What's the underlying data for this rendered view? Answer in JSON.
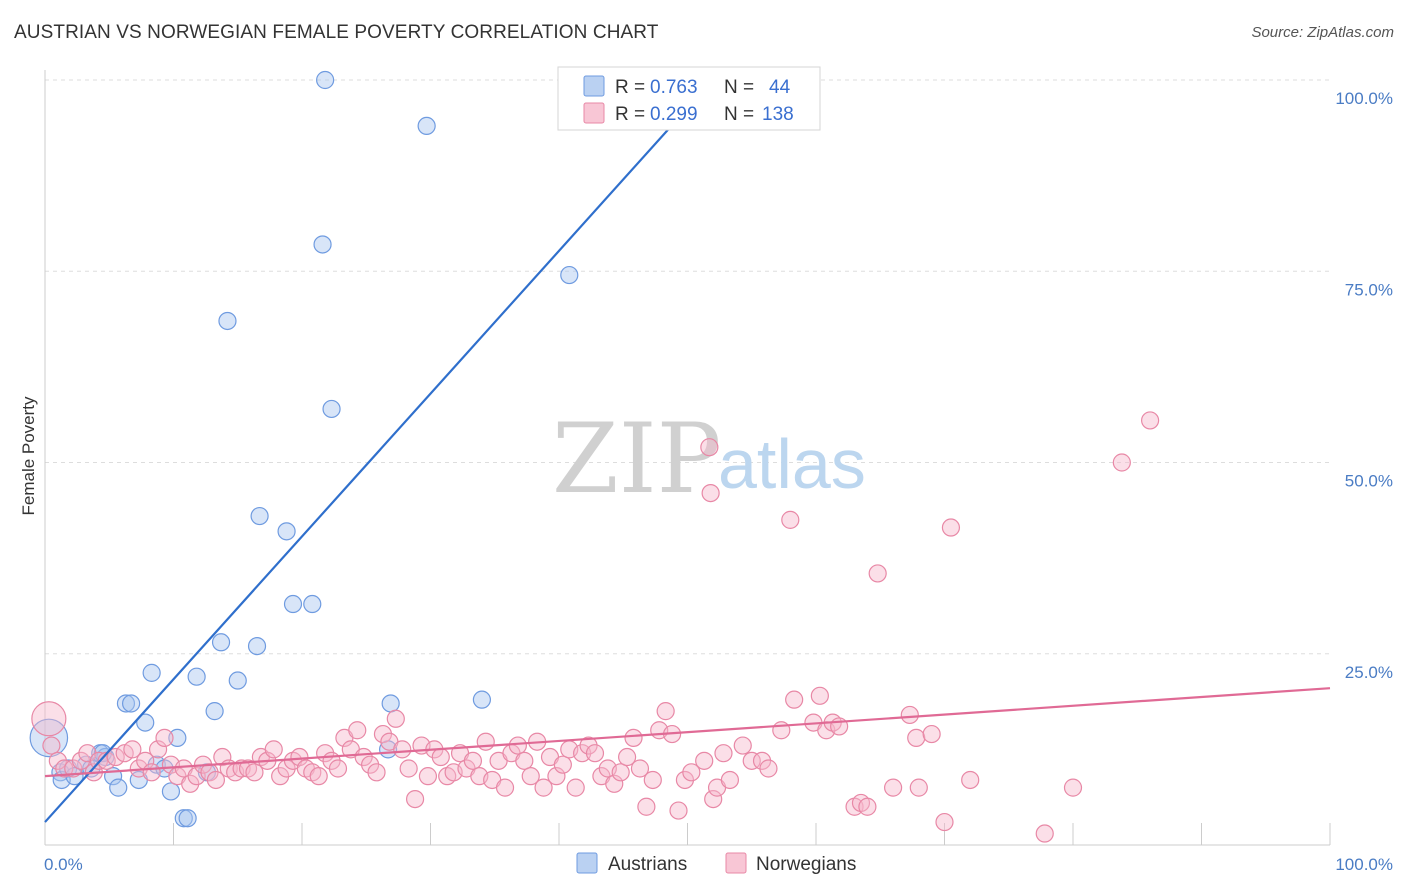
{
  "header": {
    "title": "AUSTRIAN VS NORWEGIAN FEMALE POVERTY CORRELATION CHART",
    "source": "Source: ZipAtlas.com"
  },
  "watermark": {
    "zip": "ZIP",
    "atlas": "atlas"
  },
  "legend": {
    "rows": [
      {
        "r_label": "R =",
        "r_value": "0.763",
        "n_label": "N =",
        "n_value": "44",
        "color": "#a9c6ef",
        "stroke": "#6f9be0"
      },
      {
        "r_label": "R =",
        "r_value": "0.299",
        "n_label": "N =",
        "n_value": "138",
        "color": "#f6b8cb",
        "stroke": "#e888a6"
      }
    ]
  },
  "bottom_legend": [
    {
      "label": "Austrians",
      "color": "#a9c6ef",
      "stroke": "#6f9be0"
    },
    {
      "label": "Norwegians",
      "color": "#f6b8cb",
      "stroke": "#e888a6"
    }
  ],
  "chart_data": {
    "type": "scatter",
    "ylabel": "Female Poverty",
    "xlim": [
      0,
      100
    ],
    "ylim": [
      0,
      105
    ],
    "x_tick_labels": [
      {
        "value": 0,
        "label": "0.0%"
      },
      {
        "value": 100,
        "label": "100.0%"
      }
    ],
    "y_tick_labels": [
      {
        "value": 25,
        "label": "25.0%"
      },
      {
        "value": 50,
        "label": "50.0%"
      },
      {
        "value": 75,
        "label": "75.0%"
      },
      {
        "value": 100,
        "label": "100.0%"
      }
    ],
    "grid": true,
    "series": [
      {
        "name": "Austrians",
        "color": "#a9c6ef",
        "stroke": "#6f9be0",
        "line_color": "#2f6fcc",
        "trend": {
          "x": [
            0,
            52.5
          ],
          "y": [
            3,
            101
          ]
        },
        "points": [
          [
            0.3,
            14,
            2.2
          ],
          [
            1.2,
            9.5,
            1
          ],
          [
            1.3,
            8.5,
            1
          ],
          [
            1.8,
            10,
            1
          ],
          [
            2.3,
            9,
            1
          ],
          [
            3.2,
            10.5,
            1
          ],
          [
            3.6,
            10,
            1
          ],
          [
            4.3,
            12,
            1
          ],
          [
            4.7,
            11.5,
            1
          ],
          [
            5.3,
            9,
            1
          ],
          [
            5.7,
            7.5,
            1
          ],
          [
            6.3,
            18.5,
            1
          ],
          [
            6.7,
            18.5,
            1
          ],
          [
            7.3,
            8.5,
            1
          ],
          [
            7.8,
            16,
            1
          ],
          [
            8.3,
            22.5,
            1
          ],
          [
            8.7,
            10.5,
            1
          ],
          [
            9.3,
            10,
            1
          ],
          [
            9.8,
            7,
            1
          ],
          [
            10.3,
            14,
            1
          ],
          [
            10.8,
            3.5,
            1
          ],
          [
            11.1,
            3.5,
            1
          ],
          [
            11.8,
            22,
            1
          ],
          [
            12.6,
            9.5,
            1
          ],
          [
            13.2,
            17.5,
            1
          ],
          [
            13.7,
            26.5,
            1
          ],
          [
            14.2,
            68.5,
            1
          ],
          [
            15.0,
            21.5,
            1
          ],
          [
            16.5,
            26,
            1
          ],
          [
            16.7,
            43,
            1
          ],
          [
            18.8,
            41,
            1
          ],
          [
            19.3,
            31.5,
            1
          ],
          [
            20.8,
            31.5,
            1
          ],
          [
            21.6,
            78.5,
            1
          ],
          [
            21.8,
            100,
            1
          ],
          [
            22.3,
            57,
            1
          ],
          [
            26.7,
            12.5,
            1
          ],
          [
            26.9,
            18.5,
            1
          ],
          [
            29.7,
            94,
            1
          ],
          [
            34.0,
            19,
            1
          ],
          [
            40.8,
            74.5,
            1
          ],
          [
            51.0,
            100,
            1
          ],
          [
            51.5,
            100,
            1
          ],
          [
            4.5,
            12,
            1
          ]
        ]
      },
      {
        "name": "Norwegians",
        "color": "#f6b8cb",
        "stroke": "#e888a6",
        "line_color": "#e06a95",
        "trend": {
          "x": [
            0,
            100
          ],
          "y": [
            9,
            20.5
          ]
        },
        "points": [
          [
            0.3,
            16.5,
            2.0
          ],
          [
            0.5,
            13,
            1
          ],
          [
            1.0,
            11,
            1
          ],
          [
            1.5,
            10,
            1
          ],
          [
            2.2,
            10,
            1
          ],
          [
            2.8,
            11,
            1
          ],
          [
            3.3,
            12,
            1
          ],
          [
            3.8,
            9.5,
            1
          ],
          [
            4.2,
            11,
            1
          ],
          [
            4.8,
            11,
            1
          ],
          [
            5.5,
            11.5,
            1
          ],
          [
            6.2,
            12,
            1
          ],
          [
            6.8,
            12.5,
            1
          ],
          [
            7.3,
            10,
            1
          ],
          [
            7.8,
            11,
            1
          ],
          [
            8.3,
            9.5,
            1
          ],
          [
            8.8,
            12.5,
            1
          ],
          [
            9.3,
            14,
            1
          ],
          [
            9.8,
            10.5,
            1
          ],
          [
            10.3,
            9,
            1
          ],
          [
            10.8,
            10,
            1
          ],
          [
            11.3,
            8,
            1
          ],
          [
            11.8,
            9,
            1
          ],
          [
            12.3,
            10.5,
            1
          ],
          [
            12.8,
            9.5,
            1
          ],
          [
            13.3,
            8.5,
            1
          ],
          [
            13.8,
            11.5,
            1
          ],
          [
            14.3,
            10,
            1
          ],
          [
            14.8,
            9.5,
            1
          ],
          [
            15.3,
            10,
            1
          ],
          [
            15.8,
            10,
            1
          ],
          [
            16.3,
            9.5,
            1
          ],
          [
            16.8,
            11.5,
            1
          ],
          [
            17.3,
            11,
            1
          ],
          [
            17.8,
            12.5,
            1
          ],
          [
            18.3,
            9,
            1
          ],
          [
            18.8,
            10,
            1
          ],
          [
            19.3,
            11,
            1
          ],
          [
            19.8,
            11.5,
            1
          ],
          [
            20.3,
            10,
            1
          ],
          [
            20.8,
            9.5,
            1
          ],
          [
            21.3,
            9,
            1
          ],
          [
            21.8,
            12,
            1
          ],
          [
            22.3,
            11,
            1
          ],
          [
            22.8,
            10,
            1
          ],
          [
            23.3,
            14,
            1
          ],
          [
            23.8,
            12.5,
            1
          ],
          [
            24.3,
            15,
            1
          ],
          [
            24.8,
            11.5,
            1
          ],
          [
            25.3,
            10.5,
            1
          ],
          [
            25.8,
            9.5,
            1
          ],
          [
            26.3,
            14.5,
            1
          ],
          [
            26.8,
            13.5,
            1
          ],
          [
            27.3,
            16.5,
            1
          ],
          [
            27.8,
            12.5,
            1
          ],
          [
            28.3,
            10,
            1
          ],
          [
            28.8,
            6,
            1
          ],
          [
            29.3,
            13,
            1
          ],
          [
            29.8,
            9,
            1
          ],
          [
            30.3,
            12.5,
            1
          ],
          [
            30.8,
            11.5,
            1
          ],
          [
            31.3,
            9,
            1
          ],
          [
            31.8,
            9.5,
            1
          ],
          [
            32.3,
            12,
            1
          ],
          [
            32.8,
            10,
            1
          ],
          [
            33.3,
            11,
            1
          ],
          [
            33.8,
            9,
            1
          ],
          [
            34.3,
            13.5,
            1
          ],
          [
            34.8,
            8.5,
            1
          ],
          [
            35.3,
            11,
            1
          ],
          [
            35.8,
            7.5,
            1
          ],
          [
            36.3,
            12,
            1
          ],
          [
            36.8,
            13,
            1
          ],
          [
            37.3,
            11,
            1
          ],
          [
            37.8,
            9,
            1
          ],
          [
            38.3,
            13.5,
            1
          ],
          [
            38.8,
            7.5,
            1
          ],
          [
            39.3,
            11.5,
            1
          ],
          [
            39.8,
            9,
            1
          ],
          [
            40.3,
            10.5,
            1
          ],
          [
            40.8,
            12.5,
            1
          ],
          [
            41.3,
            7.5,
            1
          ],
          [
            41.8,
            12,
            1
          ],
          [
            42.3,
            13,
            1
          ],
          [
            42.8,
            12,
            1
          ],
          [
            43.3,
            9,
            1
          ],
          [
            43.8,
            10,
            1
          ],
          [
            44.3,
            8,
            1
          ],
          [
            44.8,
            9.5,
            1
          ],
          [
            45.3,
            11.5,
            1
          ],
          [
            45.8,
            14,
            1
          ],
          [
            46.3,
            10,
            1
          ],
          [
            46.8,
            5,
            1
          ],
          [
            47.3,
            8.5,
            1
          ],
          [
            47.8,
            15,
            1
          ],
          [
            48.3,
            17.5,
            1
          ],
          [
            48.8,
            14.5,
            1
          ],
          [
            49.3,
            4.5,
            1
          ],
          [
            49.8,
            8.5,
            1
          ],
          [
            50.3,
            9.5,
            1
          ],
          [
            51.3,
            11,
            1
          ],
          [
            52.0,
            6,
            1
          ],
          [
            52.3,
            7.5,
            1
          ],
          [
            52.8,
            12,
            1
          ],
          [
            53.3,
            8.5,
            1
          ],
          [
            54.3,
            13,
            1
          ],
          [
            55.0,
            11,
            1
          ],
          [
            55.8,
            11,
            1
          ],
          [
            56.3,
            10,
            1
          ],
          [
            57.3,
            15,
            1
          ],
          [
            58.3,
            19,
            1
          ],
          [
            59.8,
            16,
            1
          ],
          [
            60.3,
            19.5,
            1
          ],
          [
            60.8,
            15,
            1
          ],
          [
            61.3,
            16,
            1
          ],
          [
            61.8,
            15.5,
            1
          ],
          [
            63.0,
            5,
            1
          ],
          [
            63.5,
            5.5,
            1
          ],
          [
            64.0,
            5,
            1
          ],
          [
            66.0,
            7.5,
            1
          ],
          [
            67.3,
            17,
            1
          ],
          [
            67.8,
            14,
            1
          ],
          [
            68.0,
            7.5,
            1
          ],
          [
            69.0,
            14.5,
            1
          ],
          [
            70.0,
            3,
            1
          ],
          [
            72.0,
            8.5,
            1
          ],
          [
            77.8,
            1.5,
            1
          ],
          [
            80.0,
            7.5,
            1
          ],
          [
            51.7,
            52,
            1
          ],
          [
            51.8,
            46,
            1
          ],
          [
            58.0,
            42.5,
            1
          ],
          [
            64.8,
            35.5,
            1
          ],
          [
            70.5,
            41.5,
            1
          ],
          [
            83.8,
            50,
            1
          ],
          [
            86.0,
            55.5,
            1
          ]
        ]
      }
    ]
  }
}
